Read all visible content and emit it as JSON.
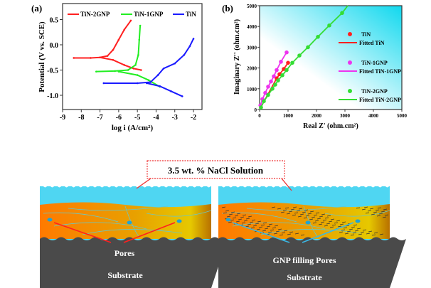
{
  "chart_data": [
    {
      "type": "line",
      "panel_label": "(a)",
      "xlabel": "log i (A/cm²)",
      "ylabel": "Potential (V vs. SCE)",
      "xlim": [
        -9,
        -2
      ],
      "ylim": [
        -1.25,
        0.75
      ],
      "xticks": [
        "-9",
        "-8",
        "-7",
        "-6",
        "-5",
        "-4",
        "-3",
        "-2"
      ],
      "yticks": [
        "0.5",
        "0.0",
        "-0.5",
        "-1.0"
      ],
      "legend": "top",
      "series": [
        {
          "name": "TiN-2GNP",
          "color": "#ff2020",
          "anodic": [
            [
              -8.4,
              -0.26
            ],
            [
              -7.5,
              -0.26
            ],
            [
              -7,
              -0.25
            ],
            [
              -6.6,
              -0.22
            ],
            [
              -6.3,
              -0.1
            ],
            [
              -6.0,
              0.1
            ],
            [
              -5.7,
              0.3
            ],
            [
              -5.35,
              0.48
            ]
          ],
          "cathodic": [
            [
              -7,
              -0.25
            ],
            [
              -6.3,
              -0.3
            ],
            [
              -5.7,
              -0.4
            ],
            [
              -5.2,
              -0.47
            ],
            [
              -4.8,
              -0.5
            ]
          ]
        },
        {
          "name": "TiN-1GNP",
          "color": "#22ee22",
          "anodic": [
            [
              -7.2,
              -0.53
            ],
            [
              -6.2,
              -0.52
            ],
            [
              -5.5,
              -0.5
            ],
            [
              -5.1,
              -0.4
            ],
            [
              -4.95,
              -0.2
            ],
            [
              -4.9,
              0.1
            ],
            [
              -4.85,
              0.38
            ]
          ],
          "cathodic": [
            [
              -6,
              -0.53
            ],
            [
              -5,
              -0.6
            ],
            [
              -4.4,
              -0.7
            ],
            [
              -3.8,
              -0.83
            ]
          ]
        },
        {
          "name": "TiN",
          "color": "#1a1aff",
          "anodic": [
            [
              -6.8,
              -0.76
            ],
            [
              -5,
              -0.76
            ],
            [
              -4.3,
              -0.74
            ],
            [
              -3.9,
              -0.6
            ],
            [
              -3.6,
              -0.47
            ],
            [
              -3,
              -0.37
            ],
            [
              -2.5,
              -0.2
            ],
            [
              -2.2,
              -0.03
            ],
            [
              -2,
              0.12
            ]
          ],
          "cathodic": [
            [
              -4.5,
              -0.76
            ],
            [
              -3.8,
              -0.82
            ],
            [
              -3.2,
              -0.92
            ],
            [
              -2.6,
              -1.02
            ]
          ]
        }
      ]
    },
    {
      "type": "scatter",
      "panel_label": "(b)",
      "xlabel": "Real Z' (ohm.cm²)",
      "ylabel": "Imaginary Z'' (ohm.cm²)",
      "xlim": [
        0,
        5000
      ],
      "ylim": [
        0,
        5000
      ],
      "xticks": [
        "0",
        "1000",
        "2000",
        "3000",
        "4000",
        "5000"
      ],
      "yticks": [
        "0",
        "1000",
        "2000",
        "3000",
        "4000",
        "5000"
      ],
      "legend": "right",
      "series": [
        {
          "name": "TiN",
          "fit_name": "Fitted TiN",
          "color": "#ff2020",
          "points": [
            [
              600,
              1500
            ],
            [
              700,
              1700
            ],
            [
              850,
              1950
            ],
            [
              1000,
              2250
            ]
          ]
        },
        {
          "name": "TiN-1GNP",
          "fit_name": "Fitted TiN-1GNP",
          "color": "#ee33ee",
          "points": [
            [
              30,
              200
            ],
            [
              100,
              500
            ],
            [
              200,
              800
            ],
            [
              300,
              1100
            ],
            [
              400,
              1350
            ],
            [
              500,
              1600
            ],
            [
              600,
              1900
            ],
            [
              750,
              2300
            ],
            [
              950,
              2750
            ]
          ]
        },
        {
          "name": "TiN-2GNP",
          "fit_name": "Fitted TiN-2GNP",
          "color": "#33dd33",
          "points": [
            [
              50,
              100
            ],
            [
              150,
              400
            ],
            [
              300,
              700
            ],
            [
              450,
              1000
            ],
            [
              550,
              1200
            ],
            [
              650,
              1400
            ],
            [
              800,
              1650
            ],
            [
              950,
              1900
            ],
            [
              1150,
              2250
            ],
            [
              1400,
              2600
            ],
            [
              1700,
              3000
            ],
            [
              2050,
              3500
            ],
            [
              2450,
              4050
            ],
            [
              2900,
              4650
            ]
          ],
          "fit_end": [
            3100,
            5000
          ]
        }
      ]
    }
  ],
  "diagram": {
    "solution_label": "3.5 wt. % NaCl Solution",
    "left_pores": "Pores",
    "left_substrate": "Substrate",
    "right_pores": "GNP filling Pores",
    "right_substrate": "Substrate"
  }
}
